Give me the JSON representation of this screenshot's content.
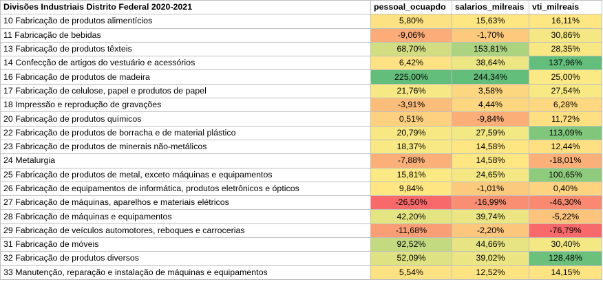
{
  "header": {
    "title": "Divisões Industriais Distrito Federal 2020-2021",
    "col1": "pessoal_ocuapdo",
    "col2": "salarios_milreais",
    "col3": "vti_milreais"
  },
  "rows": [
    {
      "label": "10 Fabricação de produtos alimentícios",
      "v": [
        "5,80%",
        "15,63%",
        "16,11%"
      ],
      "c": [
        "#fde283",
        "#fee783",
        "#fee783"
      ]
    },
    {
      "label": "11 Fabricação de bebidas",
      "v": [
        "-9,06%",
        "-1,70%",
        "30,86%"
      ],
      "c": [
        "#fbac78",
        "#fcc97d",
        "#f4e784"
      ]
    },
    {
      "label": "13 Fabricação de produtos têxteis",
      "v": [
        "68,70%",
        "153,81%",
        "28,35%"
      ],
      "c": [
        "#d2dd81",
        "#acd37f",
        "#f7e884"
      ]
    },
    {
      "label": "14 Confecção de artigos do vestuário e acessórios",
      "v": [
        "6,42%",
        "38,64%",
        "137,96%"
      ],
      "c": [
        "#fde283",
        "#ece683",
        "#63be7b"
      ]
    },
    {
      "label": "16 Fabricação de produtos de madeira",
      "v": [
        "225,00%",
        "244,34%",
        "25,00%"
      ],
      "c": [
        "#63be7b",
        "#63be7b",
        "#fae984"
      ]
    },
    {
      "label": "17 Fabricação de celulose, papel e produtos de papel",
      "v": [
        "21,76%",
        "3,58%",
        "27,54%"
      ],
      "c": [
        "#f6e884",
        "#fdd680",
        "#f8e984"
      ]
    },
    {
      "label": "18 Impressão e reprodução de gravações",
      "v": [
        "-3,91%",
        "4,44%",
        "6,28%"
      ],
      "c": [
        "#fbbd7a",
        "#fdd780",
        "#fed880"
      ]
    },
    {
      "label": "20 Fabricação de produtos químicos",
      "v": [
        "0,51%",
        "-9,84%",
        "11,72%"
      ],
      "c": [
        "#fdd17f",
        "#fbae78",
        "#fedf82"
      ]
    },
    {
      "label": "22 Fabricação de produtos de borracha e de material plástico",
      "v": [
        "20,79%",
        "27,59%",
        "113,09%"
      ],
      "c": [
        "#f7e884",
        "#f2e884",
        "#80c77c"
      ]
    },
    {
      "label": "23 Fabricação de produtos de minerais não-metálicos",
      "v": [
        "18,37%",
        "14,58%",
        "12,44%"
      ],
      "c": [
        "#f9e984",
        "#fee683",
        "#fee082"
      ]
    },
    {
      "label": "24 Metalurgia",
      "v": [
        "-7,88%",
        "14,58%",
        "-18,01%"
      ],
      "c": [
        "#fbb079",
        "#fee683",
        "#fab078"
      ]
    },
    {
      "label": "25 Fabricação de produtos de metal, exceto máquinas e equipamentos",
      "v": [
        "15,81%",
        "24,65%",
        "100,65%"
      ],
      "c": [
        "#fbe984",
        "#f5e884",
        "#8fcb7d"
      ]
    },
    {
      "label": "26 Fabricação de equipamentos de informática, produtos eletrônicos e ópticos",
      "v": [
        "9,84%",
        "-1,01%",
        "0,40%"
      ],
      "c": [
        "#fee683",
        "#fcca7d",
        "#fdd37f"
      ]
    },
    {
      "label": "27 Fabricação de máquinas, aparelhos e materiais elétricos",
      "v": [
        "-26,50%",
        "-16,99%",
        "-46,30%"
      ],
      "c": [
        "#f8696b",
        "#f98f72",
        "#f98a71"
      ]
    },
    {
      "label": "28 Fabricação de máquinas e equipamentos",
      "v": [
        "42,20%",
        "39,74%",
        "-5,22%"
      ],
      "c": [
        "#e5e483",
        "#ebe683",
        "#fcc37c"
      ]
    },
    {
      "label": "29 Fabricação de veículos automotores, reboques e carrocerias",
      "v": [
        "-11,68%",
        "-2,20%",
        "-76,79%"
      ],
      "c": [
        "#fa9f75",
        "#fcc67c",
        "#f8696b"
      ]
    },
    {
      "label": "31 Fabricação de móveis",
      "v": [
        "92,52%",
        "44,66%",
        "30,40%"
      ],
      "c": [
        "#c3da81",
        "#e7e583",
        "#f4e884"
      ]
    },
    {
      "label": "32 Fabricação de produtos diversos",
      "v": [
        "52,09%",
        "39,02%",
        "128,48%"
      ],
      "c": [
        "#dee282",
        "#ebe683",
        "#6bc17c"
      ]
    },
    {
      "label": "33 Manutenção, reparação e instalação de máquinas e equipamentos",
      "v": [
        "5,54%",
        "12,52%",
        "14,15%"
      ],
      "c": [
        "#fde283",
        "#fee383",
        "#fee383"
      ]
    }
  ]
}
